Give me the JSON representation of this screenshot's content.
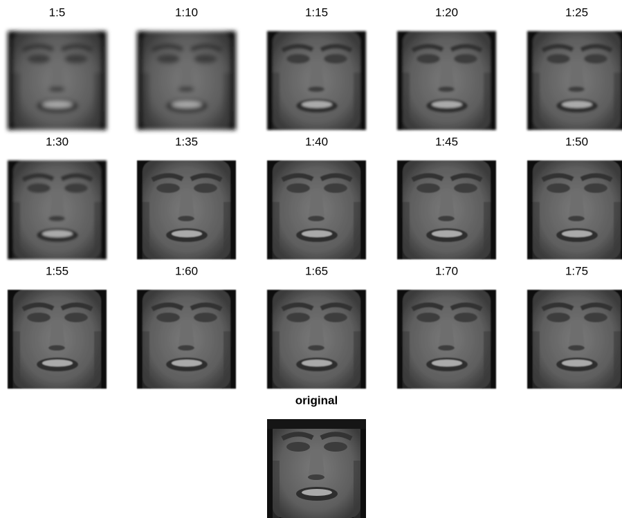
{
  "panels": [
    {
      "title": "1:5"
    },
    {
      "title": "1:10"
    },
    {
      "title": "1:15"
    },
    {
      "title": "1:20"
    },
    {
      "title": "1:25"
    },
    {
      "title": "1:30"
    },
    {
      "title": "1:35"
    },
    {
      "title": "1:40"
    },
    {
      "title": "1:45"
    },
    {
      "title": "1:50"
    },
    {
      "title": "1:55"
    },
    {
      "title": "1:60"
    },
    {
      "title": "1:65"
    },
    {
      "title": "1:70"
    },
    {
      "title": "1:75"
    }
  ],
  "original": {
    "title": "original"
  }
}
